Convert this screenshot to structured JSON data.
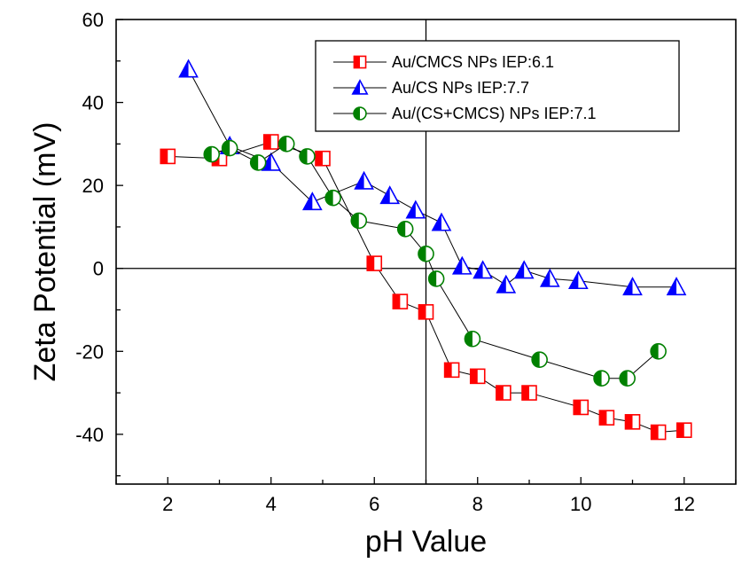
{
  "chart_data": {
    "type": "scatter",
    "title": "",
    "xlabel": "pH Value",
    "ylabel": "Zeta Potential (mV)",
    "xlim": [
      1,
      13
    ],
    "ylim": [
      -52,
      60
    ],
    "xticks": [
      2,
      4,
      6,
      8,
      10,
      12
    ],
    "yticks": [
      -40,
      -20,
      0,
      20,
      40,
      60
    ],
    "grid": false,
    "reference_lines": {
      "x": 7,
      "y": 0
    },
    "legend_position": "top-right",
    "series": [
      {
        "name": "Au/CMCS NPs IEP:6.1",
        "color": "#ff0000",
        "marker": "half-filled-square",
        "x": [
          2.0,
          3.0,
          4.0,
          5.0,
          6.0,
          6.5,
          7.0,
          7.5,
          8.0,
          8.5,
          9.0,
          10.0,
          10.5,
          11.0,
          11.5,
          12.0
        ],
        "y": [
          27,
          26.5,
          30.5,
          26.5,
          1.2,
          -8,
          -10.5,
          -24.5,
          -26,
          -30,
          -30,
          -33.5,
          -36,
          -37,
          -39.5,
          -39
        ]
      },
      {
        "name": "Au/CS NPs IEP:7.7",
        "color": "#0000ff",
        "marker": "half-filled-triangle",
        "x": [
          2.4,
          3.2,
          4.0,
          4.8,
          5.8,
          6.3,
          6.8,
          7.3,
          7.7,
          8.1,
          8.55,
          8.9,
          9.4,
          9.95,
          11.0,
          11.85
        ],
        "y": [
          48,
          29.5,
          25.5,
          16,
          21,
          17.5,
          14,
          11,
          0.5,
          -0.5,
          -4,
          -0.5,
          -2.5,
          -3,
          -4.5,
          -4.5
        ]
      },
      {
        "name": "Au/(CS+CMCS) NPs IEP:7.1",
        "color": "#008000",
        "marker": "half-filled-circle",
        "x": [
          2.85,
          3.2,
          3.75,
          4.3,
          4.7,
          5.2,
          5.7,
          6.6,
          7.0,
          7.2,
          7.9,
          9.2,
          10.4,
          10.9,
          11.5
        ],
        "y": [
          27.5,
          29,
          25.5,
          30,
          27,
          17,
          11.5,
          9.5,
          3.5,
          -2.5,
          -17,
          -22,
          -26.5,
          -26.5,
          -20
        ]
      }
    ]
  }
}
